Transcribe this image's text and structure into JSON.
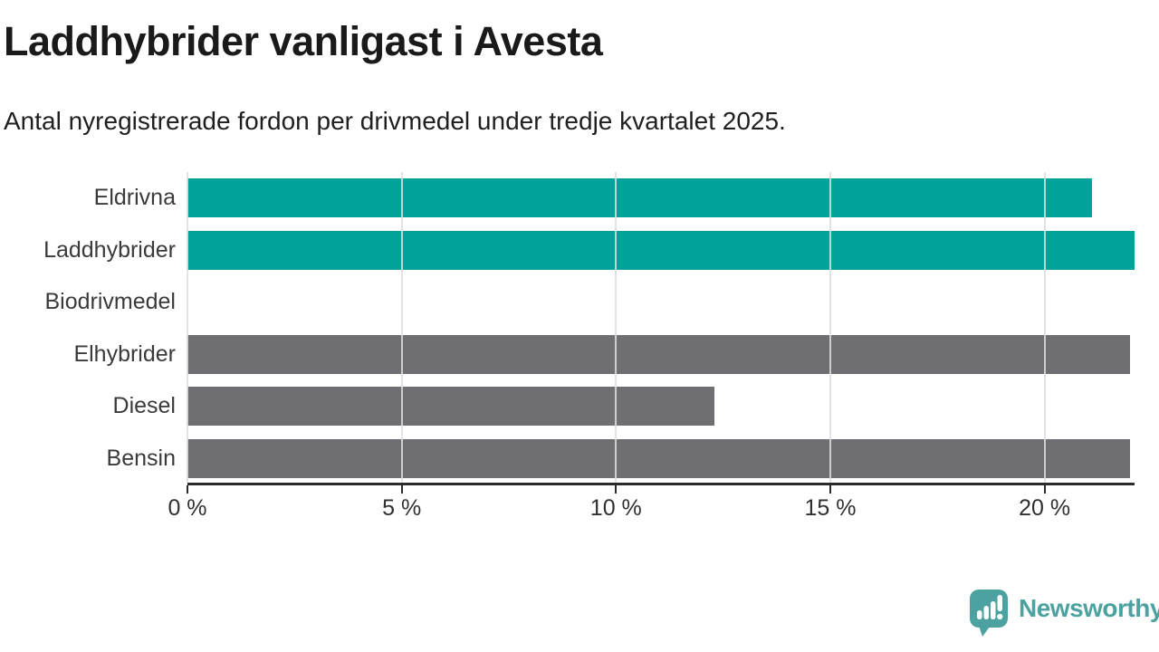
{
  "chart_data": {
    "type": "bar",
    "orientation": "horizontal",
    "title": "Laddhybrider vanligast i Avesta",
    "subtitle": "Antal nyregistrerade fordon per drivmedel under tredje kvartalet 2025.",
    "categories": [
      "Eldrivna",
      "Laddhybrider",
      "Biodrivmedel",
      "Elhybrider",
      "Diesel",
      "Bensin"
    ],
    "values": [
      21.1,
      22.1,
      0,
      22.0,
      12.3,
      22.0
    ],
    "unit": "%",
    "series_colors": [
      "#00a29a",
      "#00a29a",
      "#00a29a",
      "#6e6e73",
      "#6e6e73",
      "#6e6e73"
    ],
    "highlight_color": "#00a29a",
    "default_bar_color": "#6e6e73",
    "xlim": [
      0,
      22.1
    ],
    "xticks": [
      0,
      5,
      10,
      15,
      20
    ],
    "xtick_labels": [
      "0 %",
      "5 %",
      "10 %",
      "15 %",
      "20 %"
    ],
    "xlabel": "",
    "ylabel": "",
    "grid": "vertical-gridlines",
    "legend": "none"
  },
  "branding": {
    "name": "Newsworthy",
    "logo_icon": "speech-bubble-bar-chart-icon",
    "color": "#4ba2a0"
  },
  "colors": {
    "teal": "#00a29a",
    "gray": "#6e6e73",
    "axis": "#2b2b2b",
    "gridline": "#dedede",
    "title_text": "#1a1a1a",
    "label_text": "#3a3a3a",
    "background": "#ffffff"
  }
}
